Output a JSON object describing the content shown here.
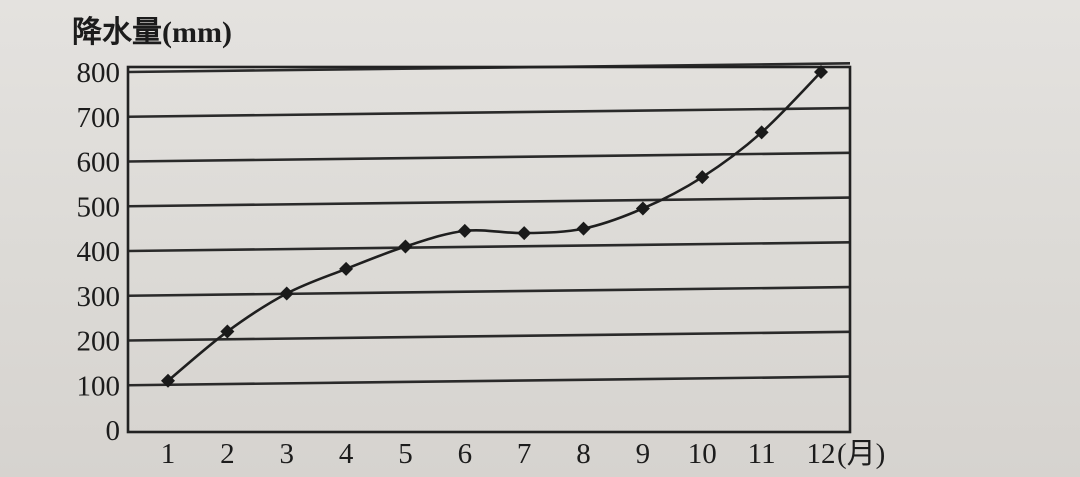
{
  "chart_data": {
    "type": "line",
    "ylabel": "降水量(mm)",
    "xlabel": "",
    "x_unit": "(月)",
    "categories": [
      "1",
      "2",
      "3",
      "4",
      "5",
      "6",
      "7",
      "8",
      "9",
      "10",
      "11",
      "12"
    ],
    "series": [
      {
        "values": [
          110,
          220,
          305,
          360,
          410,
          445,
          440,
          450,
          495,
          565,
          665,
          800
        ]
      }
    ],
    "ylim": [
      0,
      800
    ],
    "yticks": [
      "0",
      "100",
      "200",
      "300",
      "400",
      "500",
      "600",
      "700",
      "800"
    ],
    "grid": true,
    "marker": "diamond"
  }
}
